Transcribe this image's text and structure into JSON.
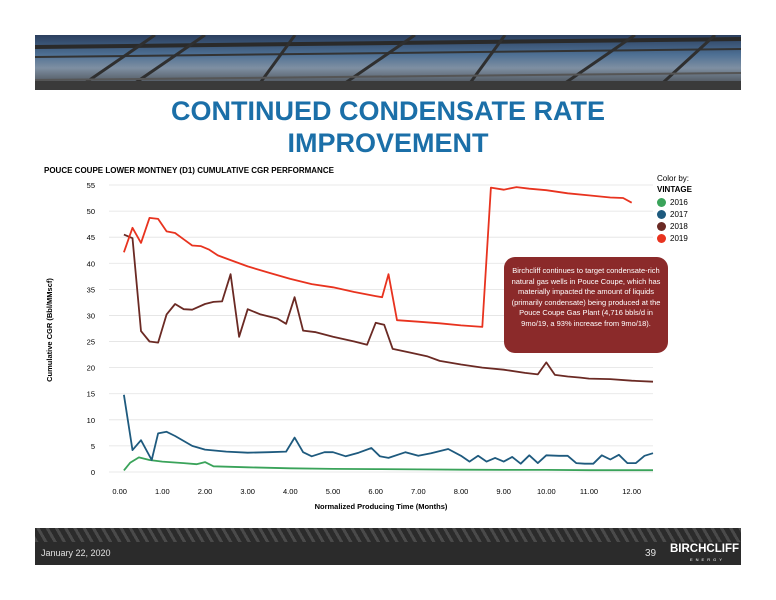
{
  "slide": {
    "title_line1": "CONTINUED CONDENSATE RATE",
    "title_line2": "IMPROVEMENT",
    "date": "January 22, 2020",
    "page_number": "39",
    "logo_text": "BIRCHCLIFF",
    "logo_subtext": "ENERGY",
    "callout_text": "Birchcliff continues to target condensate-rich natural gas wells in Pouce Coupe, which has materially impacted the amount of liquids (primarily condensate) being produced at the Pouce Coupe Gas Plant (4,716 bbls/d in 9mo/19, a 93% increase from 9mo/18)."
  },
  "legend": {
    "header1": "Color by:",
    "header2": "VINTAGE",
    "items": [
      {
        "label": "2016",
        "color": "#3aa35a"
      },
      {
        "label": "2017",
        "color": "#1e5a7e"
      },
      {
        "label": "2018",
        "color": "#6b2a24"
      },
      {
        "label": "2019",
        "color": "#e8331f"
      }
    ]
  },
  "chart_data": {
    "type": "line",
    "title": "POUCE COUPE LOWER MONTNEY (D1) CUMULATIVE CGR PERFORMANCE",
    "xlabel": "Normalized Producing Time (Months)",
    "ylabel": "Cumulative CGR (Bbl/MMscf)",
    "xlim": [
      -0.25,
      12.5
    ],
    "ylim": [
      0,
      55
    ],
    "x_ticks": [
      "0.00",
      "1.00",
      "2.00",
      "3.00",
      "4.00",
      "5.00",
      "6.00",
      "7.00",
      "8.00",
      "9.00",
      "10.00",
      "11.00",
      "12.00"
    ],
    "y_ticks": [
      "0",
      "5",
      "10",
      "15",
      "20",
      "25",
      "30",
      "35",
      "40",
      "45",
      "50",
      "55"
    ],
    "grid": "horizontal",
    "legend_position": "right",
    "series": [
      {
        "name": "2016",
        "color": "#3aa35a",
        "points": [
          [
            0.1,
            0.3
          ],
          [
            0.25,
            1.8
          ],
          [
            0.45,
            2.8
          ],
          [
            0.7,
            2.3
          ],
          [
            1.0,
            2.0
          ],
          [
            1.5,
            1.7
          ],
          [
            1.8,
            1.5
          ],
          [
            2.0,
            1.9
          ],
          [
            2.2,
            1.1
          ],
          [
            3.0,
            0.9
          ],
          [
            4.0,
            0.7
          ],
          [
            5.0,
            0.6
          ],
          [
            6.0,
            0.55
          ],
          [
            7.0,
            0.5
          ],
          [
            8.0,
            0.45
          ],
          [
            9.0,
            0.4
          ],
          [
            10.0,
            0.4
          ],
          [
            11.0,
            0.35
          ],
          [
            12.5,
            0.35
          ]
        ]
      },
      {
        "name": "2017",
        "color": "#1e5a7e",
        "points": [
          [
            0.1,
            14.8
          ],
          [
            0.3,
            4.2
          ],
          [
            0.5,
            6.1
          ],
          [
            0.75,
            2.3
          ],
          [
            0.9,
            7.4
          ],
          [
            1.1,
            7.7
          ],
          [
            1.3,
            6.9
          ],
          [
            1.7,
            5.0
          ],
          [
            2.0,
            4.3
          ],
          [
            2.5,
            3.9
          ],
          [
            3.0,
            3.7
          ],
          [
            3.5,
            3.8
          ],
          [
            3.9,
            3.9
          ],
          [
            4.1,
            6.6
          ],
          [
            4.3,
            3.8
          ],
          [
            4.5,
            3.0
          ],
          [
            4.8,
            3.8
          ],
          [
            5.0,
            3.8
          ],
          [
            5.3,
            3.0
          ],
          [
            5.6,
            3.7
          ],
          [
            5.9,
            4.6
          ],
          [
            6.1,
            3.0
          ],
          [
            6.3,
            2.7
          ],
          [
            6.7,
            3.8
          ],
          [
            7.0,
            3.1
          ],
          [
            7.3,
            3.6
          ],
          [
            7.7,
            4.4
          ],
          [
            8.0,
            3.1
          ],
          [
            8.2,
            2.0
          ],
          [
            8.4,
            3.1
          ],
          [
            8.6,
            2.0
          ],
          [
            8.8,
            2.7
          ],
          [
            9.0,
            2.0
          ],
          [
            9.2,
            2.9
          ],
          [
            9.4,
            1.6
          ],
          [
            9.6,
            3.2
          ],
          [
            9.8,
            1.7
          ],
          [
            10.0,
            3.2
          ],
          [
            10.3,
            3.1
          ],
          [
            10.5,
            3.1
          ],
          [
            10.7,
            1.7
          ],
          [
            10.9,
            1.6
          ],
          [
            11.1,
            1.6
          ],
          [
            11.3,
            3.2
          ],
          [
            11.5,
            2.4
          ],
          [
            11.7,
            3.3
          ],
          [
            11.9,
            1.7
          ],
          [
            12.1,
            1.7
          ],
          [
            12.3,
            3.1
          ],
          [
            12.5,
            3.6
          ]
        ]
      },
      {
        "name": "2018",
        "color": "#6b2a24",
        "points": [
          [
            0.1,
            45.5
          ],
          [
            0.3,
            44.8
          ],
          [
            0.5,
            27.0
          ],
          [
            0.7,
            25.0
          ],
          [
            0.9,
            24.8
          ],
          [
            1.1,
            30.2
          ],
          [
            1.3,
            32.2
          ],
          [
            1.5,
            31.2
          ],
          [
            1.7,
            31.1
          ],
          [
            2.0,
            32.2
          ],
          [
            2.2,
            32.6
          ],
          [
            2.4,
            32.7
          ],
          [
            2.6,
            37.9
          ],
          [
            2.8,
            25.9
          ],
          [
            3.0,
            31.2
          ],
          [
            3.3,
            30.2
          ],
          [
            3.7,
            29.4
          ],
          [
            3.9,
            28.4
          ],
          [
            4.1,
            33.5
          ],
          [
            4.3,
            27.1
          ],
          [
            4.6,
            26.8
          ],
          [
            5.0,
            25.9
          ],
          [
            5.5,
            25.0
          ],
          [
            5.8,
            24.4
          ],
          [
            6.0,
            28.6
          ],
          [
            6.2,
            28.2
          ],
          [
            6.4,
            23.6
          ],
          [
            6.8,
            22.9
          ],
          [
            7.2,
            22.2
          ],
          [
            7.5,
            21.3
          ],
          [
            8.0,
            20.6
          ],
          [
            8.5,
            20.0
          ],
          [
            9.0,
            19.6
          ],
          [
            9.5,
            19.0
          ],
          [
            9.8,
            18.7
          ],
          [
            10.0,
            21.0
          ],
          [
            10.2,
            18.6
          ],
          [
            10.5,
            18.3
          ],
          [
            10.8,
            18.1
          ],
          [
            11.0,
            17.9
          ],
          [
            11.5,
            17.8
          ],
          [
            12.0,
            17.5
          ],
          [
            12.5,
            17.3
          ]
        ]
      },
      {
        "name": "2019",
        "color": "#e8331f",
        "points": [
          [
            0.1,
            42.1
          ],
          [
            0.3,
            46.8
          ],
          [
            0.5,
            43.9
          ],
          [
            0.7,
            48.7
          ],
          [
            0.9,
            48.5
          ],
          [
            1.1,
            46.1
          ],
          [
            1.3,
            45.8
          ],
          [
            1.5,
            44.6
          ],
          [
            1.7,
            43.4
          ],
          [
            1.9,
            43.3
          ],
          [
            2.1,
            42.6
          ],
          [
            2.3,
            41.5
          ],
          [
            2.6,
            40.6
          ],
          [
            3.0,
            39.4
          ],
          [
            3.5,
            38.2
          ],
          [
            4.0,
            37.0
          ],
          [
            4.5,
            36.0
          ],
          [
            5.0,
            35.4
          ],
          [
            5.5,
            34.5
          ],
          [
            6.0,
            33.7
          ],
          [
            6.15,
            33.5
          ],
          [
            6.3,
            37.9
          ],
          [
            6.5,
            29.1
          ],
          [
            7.0,
            28.8
          ],
          [
            7.5,
            28.5
          ],
          [
            8.0,
            28.1
          ],
          [
            8.5,
            27.8
          ],
          [
            8.7,
            54.5
          ],
          [
            9.0,
            54.1
          ],
          [
            9.3,
            54.6
          ],
          [
            9.6,
            54.3
          ],
          [
            10.0,
            54.0
          ],
          [
            10.5,
            53.4
          ],
          [
            11.0,
            53.0
          ],
          [
            11.5,
            52.6
          ],
          [
            11.8,
            52.5
          ],
          [
            12.0,
            51.6
          ]
        ]
      }
    ]
  }
}
